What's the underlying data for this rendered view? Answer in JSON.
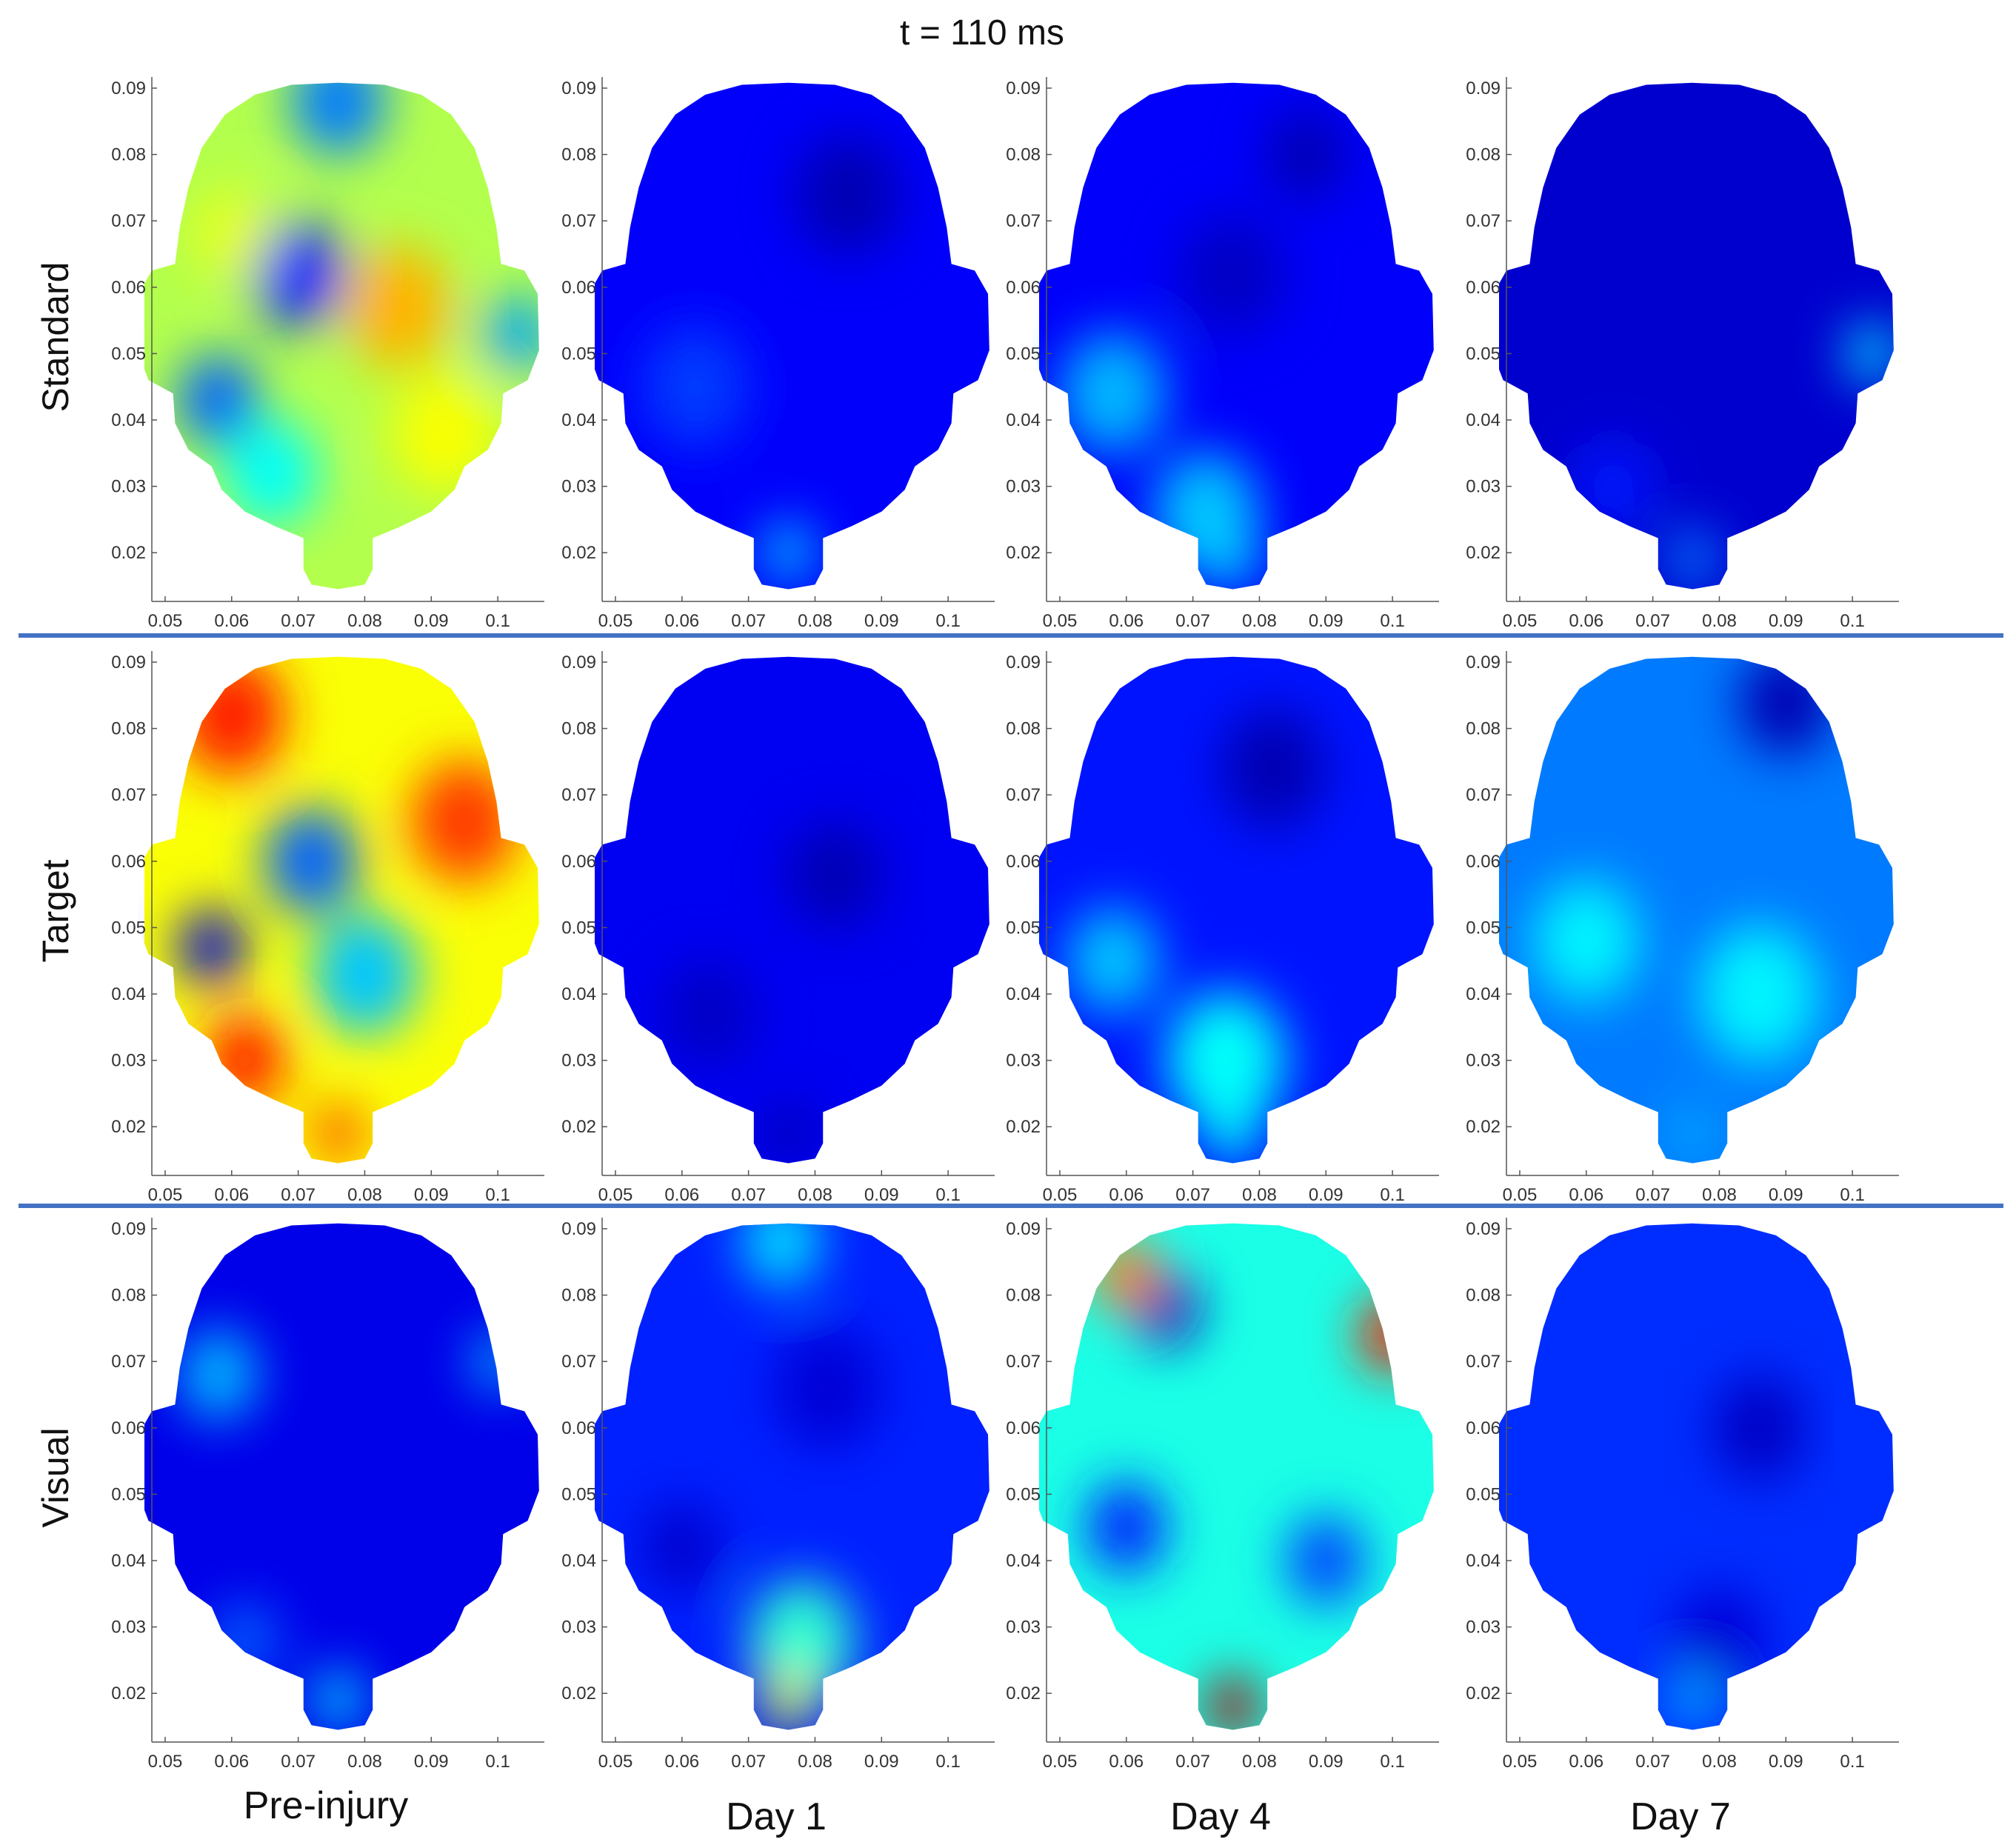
{
  "title": "t = 110 ms",
  "chart_data": {
    "type": "heatmap",
    "title": "t = 110 ms",
    "rows": [
      "Standard",
      "Target",
      "Visual"
    ],
    "columns": [
      "Pre-injury",
      "Day 1",
      "Day 4",
      "Day 7"
    ],
    "x_ticks": [
      "0.05",
      "0.06",
      "0.07",
      "0.08",
      "0.09",
      "0.1"
    ],
    "y_ticks": [
      "0.02",
      "0.03",
      "0.04",
      "0.05",
      "0.06",
      "0.07",
      "0.08",
      "0.09"
    ],
    "xlim": [
      0.048,
      0.107
    ],
    "ylim": [
      0.014,
      0.091
    ],
    "colormap": "jet",
    "colormap_stops": [
      "#00008f",
      "#0000ff",
      "#00a0ff",
      "#00ffff",
      "#80ff80",
      "#ffff00",
      "#ff8000",
      "#ff0000",
      "#800000"
    ],
    "divider_color": "#4472c4",
    "panels": [
      {
        "row": "Standard",
        "column": "Pre-injury",
        "base": 0.55,
        "blobs": [
          {
            "x": 0.076,
            "y": 0.088,
            "r": 0.007,
            "v": 0.22
          },
          {
            "x": 0.07,
            "y": 0.062,
            "r": 0.007,
            "v": 0.15
          },
          {
            "x": 0.058,
            "y": 0.043,
            "r": 0.006,
            "v": 0.2
          },
          {
            "x": 0.103,
            "y": 0.053,
            "r": 0.005,
            "v": 0.25
          },
          {
            "x": 0.085,
            "y": 0.057,
            "r": 0.008,
            "v": 0.7
          },
          {
            "x": 0.092,
            "y": 0.038,
            "r": 0.008,
            "v": 0.62
          },
          {
            "x": 0.06,
            "y": 0.068,
            "r": 0.006,
            "v": 0.6
          },
          {
            "x": 0.066,
            "y": 0.032,
            "r": 0.007,
            "v": 0.38
          }
        ]
      },
      {
        "row": "Standard",
        "column": "Day 1",
        "base": 0.12,
        "blobs": [
          {
            "x": 0.085,
            "y": 0.074,
            "r": 0.008,
            "v": 0.04
          },
          {
            "x": 0.062,
            "y": 0.045,
            "r": 0.008,
            "v": 0.17
          },
          {
            "x": 0.076,
            "y": 0.02,
            "r": 0.004,
            "v": 0.3
          }
        ]
      },
      {
        "row": "Standard",
        "column": "Day 4",
        "base": 0.12,
        "blobs": [
          {
            "x": 0.087,
            "y": 0.08,
            "r": 0.006,
            "v": 0.04
          },
          {
            "x": 0.076,
            "y": 0.062,
            "r": 0.008,
            "v": 0.06
          },
          {
            "x": 0.058,
            "y": 0.044,
            "r": 0.008,
            "v": 0.28
          },
          {
            "x": 0.072,
            "y": 0.026,
            "r": 0.008,
            "v": 0.3
          },
          {
            "x": 0.076,
            "y": 0.019,
            "r": 0.004,
            "v": 0.32
          }
        ]
      },
      {
        "row": "Standard",
        "column": "Day 7",
        "base": 0.07,
        "blobs": [
          {
            "x": 0.103,
            "y": 0.05,
            "r": 0.004,
            "v": 0.32
          },
          {
            "x": 0.076,
            "y": 0.019,
            "r": 0.004,
            "v": 0.22
          },
          {
            "x": 0.064,
            "y": 0.03,
            "r": 0.006,
            "v": 0.14
          }
        ]
      },
      {
        "row": "Target",
        "column": "Pre-injury",
        "base": 0.62,
        "blobs": [
          {
            "x": 0.06,
            "y": 0.082,
            "r": 0.008,
            "v": 0.85
          },
          {
            "x": 0.095,
            "y": 0.066,
            "r": 0.008,
            "v": 0.82
          },
          {
            "x": 0.072,
            "y": 0.06,
            "r": 0.007,
            "v": 0.2
          },
          {
            "x": 0.057,
            "y": 0.047,
            "r": 0.005,
            "v": 0.08
          },
          {
            "x": 0.08,
            "y": 0.043,
            "r": 0.008,
            "v": 0.3
          },
          {
            "x": 0.062,
            "y": 0.03,
            "r": 0.006,
            "v": 0.85
          },
          {
            "x": 0.076,
            "y": 0.019,
            "r": 0.004,
            "v": 0.8
          }
        ]
      },
      {
        "row": "Target",
        "column": "Day 1",
        "base": 0.11,
        "blobs": [
          {
            "x": 0.083,
            "y": 0.058,
            "r": 0.007,
            "v": 0.04
          },
          {
            "x": 0.064,
            "y": 0.037,
            "r": 0.007,
            "v": 0.06
          },
          {
            "x": 0.076,
            "y": 0.019,
            "r": 0.004,
            "v": 0.04
          }
        ]
      },
      {
        "row": "Target",
        "column": "Day 4",
        "base": 0.14,
        "blobs": [
          {
            "x": 0.082,
            "y": 0.074,
            "r": 0.008,
            "v": 0.04
          },
          {
            "x": 0.058,
            "y": 0.045,
            "r": 0.007,
            "v": 0.3
          },
          {
            "x": 0.075,
            "y": 0.03,
            "r": 0.009,
            "v": 0.38
          },
          {
            "x": 0.076,
            "y": 0.019,
            "r": 0.004,
            "v": 0.38
          }
        ]
      },
      {
        "row": "Target",
        "column": "Day 7",
        "base": 0.22,
        "blobs": [
          {
            "x": 0.09,
            "y": 0.084,
            "r": 0.007,
            "v": 0.04
          },
          {
            "x": 0.06,
            "y": 0.048,
            "r": 0.008,
            "v": 0.36
          },
          {
            "x": 0.086,
            "y": 0.04,
            "r": 0.009,
            "v": 0.36
          },
          {
            "x": 0.076,
            "y": 0.019,
            "r": 0.004,
            "v": 0.26
          }
        ]
      },
      {
        "row": "Visual",
        "column": "Pre-injury",
        "base": 0.1,
        "blobs": [
          {
            "x": 0.058,
            "y": 0.068,
            "r": 0.006,
            "v": 0.28
          },
          {
            "x": 0.1,
            "y": 0.07,
            "r": 0.004,
            "v": 0.26
          },
          {
            "x": 0.076,
            "y": 0.019,
            "r": 0.004,
            "v": 0.32
          },
          {
            "x": 0.062,
            "y": 0.028,
            "r": 0.005,
            "v": 0.2
          }
        ]
      },
      {
        "row": "Visual",
        "column": "Day 1",
        "base": 0.15,
        "blobs": [
          {
            "x": 0.075,
            "y": 0.088,
            "r": 0.006,
            "v": 0.33
          },
          {
            "x": 0.082,
            "y": 0.066,
            "r": 0.008,
            "v": 0.08
          },
          {
            "x": 0.06,
            "y": 0.042,
            "r": 0.006,
            "v": 0.07
          },
          {
            "x": 0.078,
            "y": 0.028,
            "r": 0.008,
            "v": 0.42
          },
          {
            "x": 0.076,
            "y": 0.019,
            "r": 0.004,
            "v": 0.6
          }
        ]
      },
      {
        "row": "Visual",
        "column": "Day 4",
        "base": 0.4,
        "blobs": [
          {
            "x": 0.066,
            "y": 0.078,
            "r": 0.005,
            "v": 0.05
          },
          {
            "x": 0.06,
            "y": 0.083,
            "r": 0.005,
            "v": 0.75
          },
          {
            "x": 0.1,
            "y": 0.074,
            "r": 0.005,
            "v": 0.85
          },
          {
            "x": 0.06,
            "y": 0.045,
            "r": 0.006,
            "v": 0.15
          },
          {
            "x": 0.09,
            "y": 0.04,
            "r": 0.006,
            "v": 0.18
          },
          {
            "x": 0.076,
            "y": 0.018,
            "r": 0.004,
            "v": 0.95
          }
        ]
      },
      {
        "row": "Visual",
        "column": "Day 7",
        "base": 0.16,
        "blobs": [
          {
            "x": 0.086,
            "y": 0.06,
            "r": 0.007,
            "v": 0.06
          },
          {
            "x": 0.08,
            "y": 0.028,
            "r": 0.007,
            "v": 0.08
          },
          {
            "x": 0.076,
            "y": 0.019,
            "r": 0.004,
            "v": 0.26
          }
        ]
      }
    ]
  }
}
